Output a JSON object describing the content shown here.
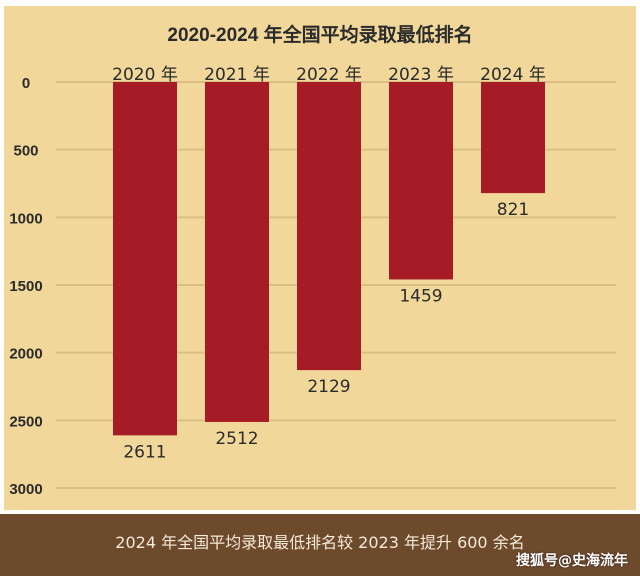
{
  "chart_data": {
    "type": "bar",
    "title": "2020-2024 年全国平均录取最低排名",
    "categories": [
      "2020 年",
      "2021 年",
      "2022 年",
      "2023 年",
      "2024 年"
    ],
    "values": [
      2611,
      2512,
      2129,
      1459,
      821
    ],
    "y_axis": "inverted",
    "ylim": [
      0,
      3000
    ],
    "yticks": [
      0,
      500,
      1000,
      1500,
      2000,
      2500,
      3000
    ],
    "grid": true,
    "bar_color": "#a51c26",
    "background_color": "#f1d79a"
  },
  "footer": {
    "text": "2024 年全国平均录取最低排名较 2023 年提升 600 余名",
    "watermark": "搜狐号@史海流年"
  }
}
